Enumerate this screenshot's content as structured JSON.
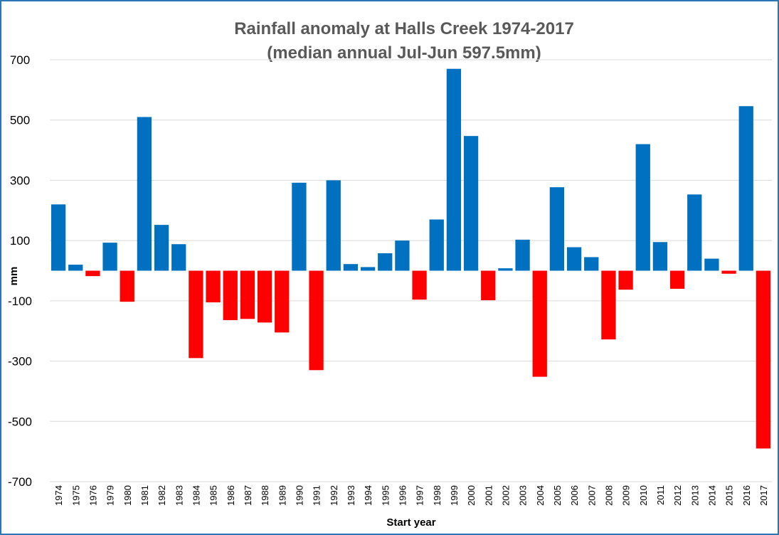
{
  "chart_data": {
    "type": "bar",
    "title": "Rainfall anomaly at Halls Creek 1974-2017",
    "subtitle": "(median annual Jul-Jun 597.5mm)",
    "xlabel": "Start year",
    "ylabel": "mm",
    "ylim": [
      -700,
      750
    ],
    "yticks": [
      "700",
      "500",
      "300",
      "100",
      "-100",
      "-300",
      "-500",
      "-700"
    ],
    "grid": true,
    "colors": {
      "positive": "#0070c0",
      "negative": "#ff0000",
      "grid": "#d9d9d9",
      "border": "#2e75b6"
    },
    "categories": [
      "1974",
      "1975",
      "1976",
      "1979",
      "1980",
      "1981",
      "1982",
      "1983",
      "1984",
      "1985",
      "1986",
      "1987",
      "1988",
      "1989",
      "1990",
      "1991",
      "1992",
      "1993",
      "1994",
      "1995",
      "1996",
      "1997",
      "1998",
      "1999",
      "2000",
      "2001",
      "2002",
      "2003",
      "2004",
      "2005",
      "2006",
      "2007",
      "2008",
      "2009",
      "2010",
      "2011",
      "2012",
      "2013",
      "2014",
      "2015",
      "2016",
      "2017"
    ],
    "values": [
      220,
      20,
      -18,
      93,
      -103,
      510,
      152,
      88,
      -290,
      -105,
      -164,
      -160,
      -172,
      -205,
      292,
      -330,
      300,
      22,
      12,
      58,
      100,
      -96,
      170,
      670,
      447,
      -98,
      8,
      103,
      -352,
      277,
      78,
      45,
      -228,
      -63,
      420,
      95,
      -60,
      253,
      40,
      -10,
      546,
      -590
    ]
  }
}
